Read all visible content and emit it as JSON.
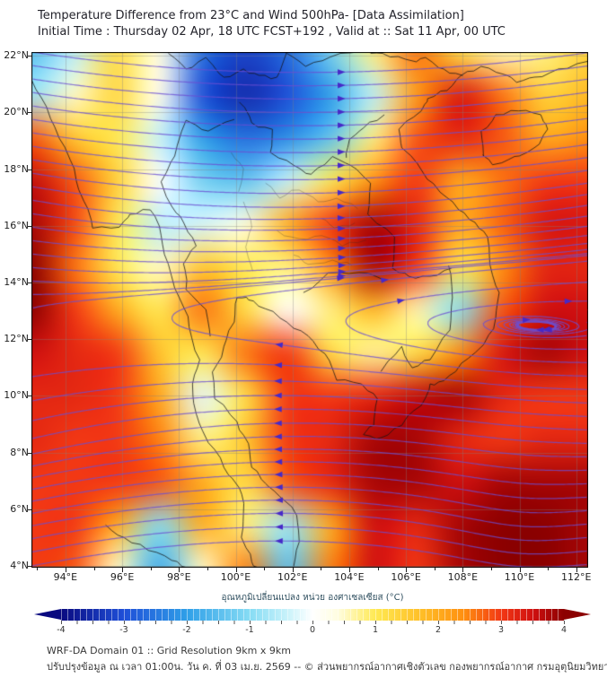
{
  "header": {
    "title": "Temperature Difference from 23°C and Wind 500hPa- [Data Assimilation]",
    "subtitle": "Initial Time : Thursday 02 Apr, 18 UTC FCST+192 , Valid at ::  Sat 11 Apr, 00 UTC"
  },
  "footer": {
    "line1": "WRF-DA Domain 01 :: Grid Resolution 9km x 9km",
    "line2": "ปรับปรุงข้อมูล ณ เวลา 01:00น. วัน ค. ที่ 03 เม.ย. 2569 -- © ส่วนพยากรณ์อากาศเชิงตัวเลข กองพยากรณ์อากาศ กรมอุตุนิยมวิทยา"
  },
  "colorbar": {
    "label": "อุณหภูมิเปลี่ยนแปลง หน่วย องศาเซลเซียส (°C)",
    "ticks": [
      -4,
      -3,
      -2,
      -1,
      0,
      1,
      2,
      3,
      4
    ],
    "stops": [
      {
        "v": -4,
        "c": "#0a0a80"
      },
      {
        "v": -3,
        "c": "#1f4fd8"
      },
      {
        "v": -2,
        "c": "#2f9fe8"
      },
      {
        "v": -1,
        "c": "#86dcf4"
      },
      {
        "v": -0.4,
        "c": "#c8f2fa"
      },
      {
        "v": 0,
        "c": "#ffffff"
      },
      {
        "v": 0.4,
        "c": "#fffde0"
      },
      {
        "v": 1,
        "c": "#ffe952"
      },
      {
        "v": 1.7,
        "c": "#ffc028"
      },
      {
        "v": 2.4,
        "c": "#ff9010"
      },
      {
        "v": 3,
        "c": "#f23814"
      },
      {
        "v": 3.5,
        "c": "#d01010"
      },
      {
        "v": 4,
        "c": "#8c0000"
      }
    ]
  },
  "axes": {
    "lat_ticks": [
      {
        "v": 22,
        "label": "22°N"
      },
      {
        "v": 20,
        "label": "20°N"
      },
      {
        "v": 18,
        "label": "18°N"
      },
      {
        "v": 16,
        "label": "16°N"
      },
      {
        "v": 14,
        "label": "14°N"
      },
      {
        "v": 12,
        "label": "12°N"
      },
      {
        "v": 10,
        "label": "10°N"
      },
      {
        "v": 8,
        "label": "8°N"
      },
      {
        "v": 6,
        "label": "6°N"
      },
      {
        "v": 4,
        "label": "4°N"
      }
    ],
    "lon_ticks": [
      {
        "v": 94,
        "label": "94°E"
      },
      {
        "v": 96,
        "label": "96°E"
      },
      {
        "v": 98,
        "label": "98°E"
      },
      {
        "v": 100,
        "label": "100°E"
      },
      {
        "v": 102,
        "label": "102°E"
      },
      {
        "v": 104,
        "label": "104°E"
      },
      {
        "v": 106,
        "label": "106°E"
      },
      {
        "v": 108,
        "label": "108°E"
      },
      {
        "v": 110,
        "label": "110°E"
      },
      {
        "v": 112,
        "label": "112°E"
      }
    ]
  },
  "chart_data": {
    "type": "heatmap",
    "title": "Temperature Difference from 23°C and Wind 500hPa- [Data Assimilation]",
    "units": "°C",
    "value_range": [
      -4,
      4
    ],
    "lon_range": [
      92.8,
      112.42
    ],
    "lat_range": [
      3.94,
      22.13
    ],
    "wind": {
      "level": "500hPa",
      "pattern": "westerly streamlines north of ~13°N dipping southeast, easterly streamlines south of ~13°N with anticyclonic curvature near 110°E 5°N"
    },
    "grid_lons": [
      93,
      94.5,
      96,
      97.5,
      99,
      100.5,
      102,
      103.5,
      105,
      106.5,
      108,
      109.5,
      111,
      112.5
    ],
    "grid_lats": [
      22.3,
      20.8,
      19.3,
      17.8,
      16.3,
      14.8,
      13.3,
      11.8,
      10.3,
      8.8,
      7.3,
      5.8,
      4.3
    ],
    "temperature_diff_c": [
      [
        -1.5,
        -0.5,
        1.2,
        0.3,
        -2.6,
        -3.2,
        -2.6,
        -1.2,
        0.8,
        2.6,
        1.2,
        0.6,
        0.8,
        1.4
      ],
      [
        -0.8,
        0.5,
        1.3,
        0.2,
        -3.0,
        -3.5,
        -3.0,
        -2.0,
        -0.5,
        2.2,
        3.4,
        2.6,
        1.4,
        1.8
      ],
      [
        2.8,
        1.6,
        1.0,
        -0.4,
        -2.0,
        -2.6,
        -2.2,
        -1.4,
        0.8,
        2.8,
        3.2,
        2.8,
        2.0,
        2.4
      ],
      [
        3.6,
        2.8,
        1.4,
        0.0,
        -1.2,
        -1.4,
        -0.4,
        1.0,
        2.4,
        3.0,
        2.0,
        2.6,
        3.0,
        3.0
      ],
      [
        3.8,
        2.9,
        1.0,
        -0.5,
        -0.3,
        0.4,
        2.0,
        3.0,
        3.8,
        3.2,
        2.0,
        2.7,
        3.4,
        3.4
      ],
      [
        4.0,
        2.6,
        1.0,
        0.5,
        1.6,
        1.0,
        0.8,
        2.4,
        3.8,
        3.0,
        1.0,
        2.4,
        3.2,
        3.2
      ],
      [
        4.0,
        3.0,
        2.0,
        1.0,
        2.6,
        1.2,
        0.0,
        0.8,
        1.8,
        0.6,
        -1.0,
        2.8,
        3.5,
        3.5
      ],
      [
        3.5,
        3.2,
        3.0,
        1.6,
        1.0,
        2.6,
        3.0,
        1.2,
        0.7,
        1.2,
        2.4,
        3.4,
        3.8,
        3.5
      ],
      [
        3.2,
        3.2,
        3.0,
        2.0,
        -0.2,
        1.2,
        3.0,
        3.0,
        3.2,
        3.6,
        3.8,
        3.2,
        3.0,
        3.0
      ],
      [
        3.2,
        3.0,
        3.0,
        2.5,
        0.8,
        1.6,
        3.0,
        3.2,
        3.8,
        3.8,
        3.2,
        3.0,
        3.2,
        3.2
      ],
      [
        3.0,
        3.0,
        3.0,
        2.8,
        2.0,
        1.2,
        2.8,
        3.2,
        3.8,
        3.8,
        3.5,
        3.8,
        3.8,
        3.8
      ],
      [
        3.0,
        3.0,
        2.0,
        -1.0,
        2.0,
        0.8,
        -0.8,
        2.0,
        3.5,
        3.2,
        3.8,
        4.0,
        4.0,
        3.8
      ],
      [
        3.0,
        2.8,
        0.5,
        -1.8,
        0.5,
        2.5,
        -1.5,
        2.5,
        3.5,
        3.0,
        3.8,
        4.0,
        4.0,
        3.8
      ]
    ]
  },
  "style": {
    "streamline_color": "rgba(106,78,210,0.78)",
    "arrow_color": "#4629c8",
    "border_color": "rgba(20,20,20,0.85)",
    "grid_color": "rgba(130,130,130,0.35)"
  }
}
